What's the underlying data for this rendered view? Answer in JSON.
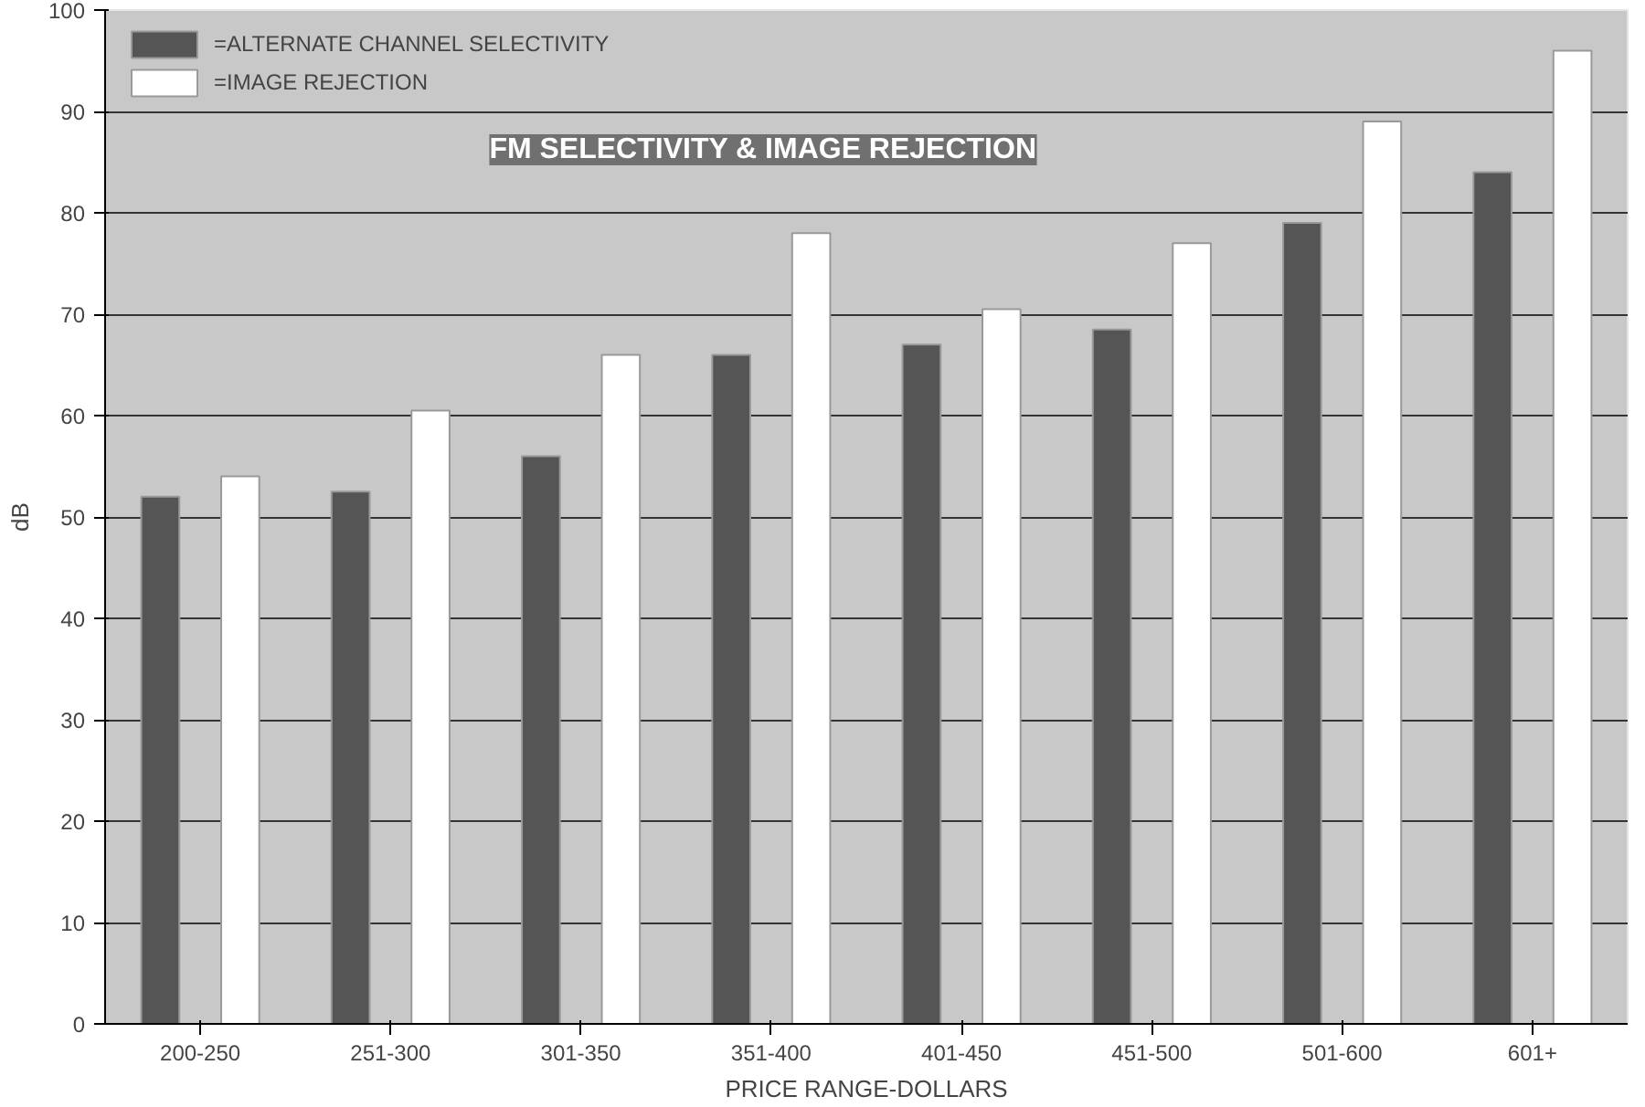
{
  "chart_data": {
    "type": "bar",
    "title": "FM SELECTIVITY & IMAGE REJECTION",
    "xlabel": "PRICE RANGE-DOLLARS",
    "ylabel": "dB",
    "categories": [
      "200-250",
      "251-300",
      "301-350",
      "351-400",
      "401-450",
      "451-500",
      "501-600",
      "601+"
    ],
    "series": [
      {
        "name": "=ALTERNATE CHANNEL SELECTIVITY",
        "color": "#555555",
        "values": [
          52,
          52.5,
          56,
          66,
          67,
          68.5,
          79,
          84
        ]
      },
      {
        "name": "=IMAGE REJECTION",
        "color": "#ffffff",
        "values": [
          54,
          60.5,
          66,
          78,
          70.5,
          77,
          89,
          96
        ]
      }
    ],
    "ylim": [
      0,
      100
    ],
    "yticks": [
      0,
      10,
      20,
      30,
      40,
      50,
      60,
      70,
      80,
      90,
      100
    ],
    "grid": "y",
    "legend": "top left"
  }
}
